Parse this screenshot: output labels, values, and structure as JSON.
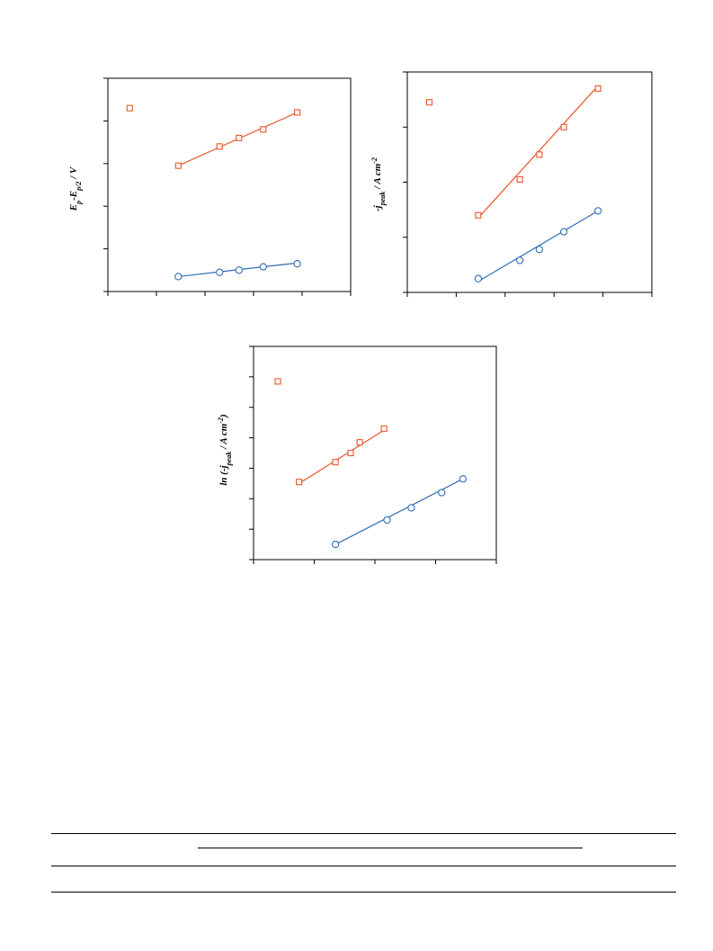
{
  "colors": {
    "orange": "#e8542c",
    "blue": "#2f6db5"
  },
  "charts": [
    {
      "id": "chart-a",
      "ylabel_parts": [
        {
          "t": "E",
          "s": "n"
        },
        {
          "t": "p",
          "s": "sub"
        },
        {
          "t": "-E",
          "s": "n"
        },
        {
          "t": "p/2",
          "s": "sub"
        },
        {
          "t": " / V",
          "s": "n"
        }
      ],
      "xlim": [
        0,
        5
      ],
      "ylim": [
        0,
        5
      ],
      "xticks": [
        0,
        1,
        2,
        3,
        4,
        5
      ],
      "yticks": [
        0,
        1,
        2,
        3,
        4,
        5
      ]
    },
    {
      "id": "chart-b",
      "ylabel_parts": [
        {
          "t": "-j",
          "s": "n"
        },
        {
          "t": "peak",
          "s": "sub"
        },
        {
          "t": " / A cm",
          "s": "n"
        },
        {
          "t": "-2",
          "s": "sup"
        }
      ],
      "xlim": [
        0,
        5
      ],
      "ylim": [
        0,
        4
      ],
      "xticks": [
        0,
        1,
        2,
        3,
        4,
        5
      ],
      "yticks": [
        0,
        1,
        2,
        3,
        4
      ]
    },
    {
      "id": "chart-c",
      "ylabel_parts": [
        {
          "t": "ln (-j",
          "s": "n"
        },
        {
          "t": "peak",
          "s": "sub"
        },
        {
          "t": " / A cm",
          "s": "n"
        },
        {
          "t": "-2",
          "s": "sup"
        },
        {
          "t": ")",
          "s": "n"
        }
      ],
      "xlim": [
        0,
        4
      ],
      "ylim": [
        0,
        7
      ],
      "xticks": [
        0,
        1,
        2,
        3,
        4
      ],
      "yticks": [
        0,
        1,
        2,
        3,
        4,
        5,
        6,
        7
      ]
    }
  ],
  "chart_data": [
    {
      "type": "scatter",
      "title": "",
      "xlabel": "",
      "ylabel": "Ep-Ep/2 / V",
      "xlim": [
        0,
        5
      ],
      "ylim": [
        0,
        5
      ],
      "grid": false,
      "series": [
        {
          "marker": "square",
          "color": "#e8542c",
          "x": [
            0.45,
            1.45,
            2.3,
            2.7,
            3.2,
            3.9
          ],
          "y": [
            4.3,
            2.95,
            3.4,
            3.6,
            3.8,
            4.2
          ],
          "fit": [
            [
              1.45,
              2.95
            ],
            [
              3.9,
              4.2
            ]
          ]
        },
        {
          "marker": "circle",
          "color": "#2f6db5",
          "x": [
            1.45,
            2.3,
            2.7,
            3.2,
            3.9
          ],
          "y": [
            0.35,
            0.45,
            0.5,
            0.58,
            0.65
          ],
          "fit": [
            [
              1.45,
              0.35
            ],
            [
              3.9,
              0.67
            ]
          ]
        }
      ]
    },
    {
      "type": "scatter",
      "title": "",
      "xlabel": "",
      "ylabel": "-jpeak / A cm-2",
      "xlim": [
        0,
        5
      ],
      "ylim": [
        0,
        4
      ],
      "grid": false,
      "series": [
        {
          "marker": "square",
          "color": "#e8542c",
          "x": [
            0.45,
            1.45,
            2.3,
            2.7,
            3.2,
            3.9
          ],
          "y": [
            3.45,
            1.4,
            2.05,
            2.5,
            3.0,
            3.7
          ],
          "fit": [
            [
              1.45,
              1.35
            ],
            [
              3.9,
              3.75
            ]
          ]
        },
        {
          "marker": "circle",
          "color": "#2f6db5",
          "x": [
            1.45,
            2.3,
            2.7,
            3.2,
            3.9
          ],
          "y": [
            0.25,
            0.58,
            0.78,
            1.1,
            1.48
          ],
          "fit": [
            [
              1.45,
              0.2
            ],
            [
              3.9,
              1.48
            ]
          ]
        }
      ]
    },
    {
      "type": "scatter",
      "title": "",
      "xlabel": "",
      "ylabel": "ln (-jpeak / A cm-2)",
      "xlim": [
        0,
        4
      ],
      "ylim": [
        0,
        7
      ],
      "grid": false,
      "series": [
        {
          "marker": "square",
          "color": "#e8542c",
          "x": [
            0.4,
            0.75,
            1.35,
            1.6,
            1.75,
            2.15
          ],
          "y": [
            5.85,
            2.55,
            3.2,
            3.5,
            3.85,
            4.3
          ],
          "fit": [
            [
              0.75,
              2.5
            ],
            [
              2.15,
              4.25
            ]
          ]
        },
        {
          "marker": "circle",
          "color": "#2f6db5",
          "x": [
            1.35,
            2.2,
            2.6,
            3.1,
            3.45
          ],
          "y": [
            0.5,
            1.3,
            1.7,
            2.2,
            2.65
          ],
          "fit": [
            [
              1.35,
              0.5
            ],
            [
              3.45,
              2.65
            ]
          ]
        }
      ]
    }
  ]
}
